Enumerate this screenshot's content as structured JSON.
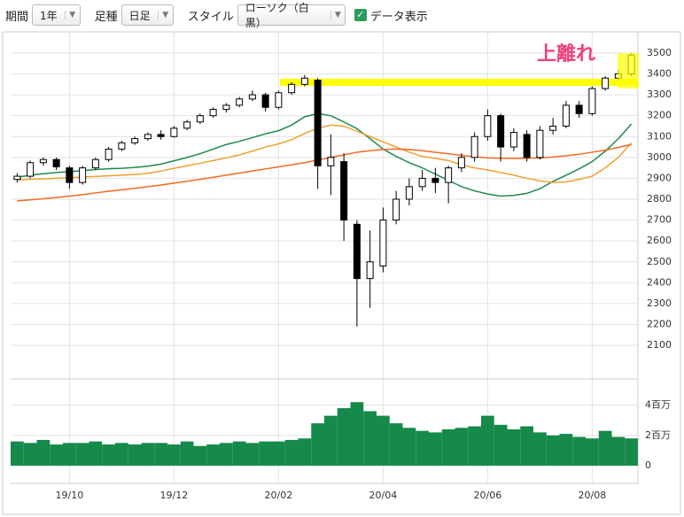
{
  "toolbar": {
    "period_label": "期間",
    "period_value": "1年",
    "bar_label": "足種",
    "bar_value": "日足",
    "style_label": "スタイル",
    "style_value": "ローソク（白黒）",
    "data_checkbox": "データ表示"
  },
  "chart_data": {
    "type": "candlestick",
    "categories": [
      null,
      null,
      null,
      null,
      "19/10",
      null,
      null,
      null,
      null,
      null,
      null,
      null,
      "19/12",
      null,
      null,
      null,
      null,
      null,
      null,
      null,
      "20/02",
      null,
      null,
      null,
      null,
      null,
      null,
      null,
      "20/04",
      null,
      null,
      null,
      null,
      null,
      null,
      null,
      "20/06",
      null,
      null,
      null,
      null,
      null,
      null,
      null,
      "20/08",
      null,
      null,
      null
    ],
    "open": [
      2895,
      2910,
      2975,
      2990,
      2950,
      2880,
      2950,
      2990,
      3040,
      3070,
      3090,
      3110,
      3100,
      3140,
      3170,
      3200,
      3230,
      3250,
      3280,
      3300,
      3240,
      3310,
      3350,
      3370,
      2960,
      2980,
      2680,
      2420,
      2480,
      2700,
      2800,
      2860,
      2900,
      2880,
      2950,
      3000,
      3100,
      3200,
      3050,
      3110,
      3000,
      3130,
      3150,
      3250,
      3210,
      3330,
      3380,
      3400
    ],
    "high": [
      2925,
      2985,
      3000,
      3000,
      2960,
      2960,
      3000,
      3050,
      3080,
      3100,
      3120,
      3130,
      3150,
      3180,
      3210,
      3240,
      3260,
      3290,
      3320,
      3310,
      3320,
      3360,
      3395,
      3380,
      3110,
      3020,
      2700,
      2650,
      2760,
      2840,
      2900,
      2940,
      2950,
      2960,
      3020,
      3120,
      3230,
      3210,
      3140,
      3130,
      3150,
      3190,
      3270,
      3270,
      3340,
      3390,
      3420,
      3500
    ],
    "low": [
      2880,
      2900,
      2960,
      2940,
      2850,
      2870,
      2940,
      2980,
      3030,
      3060,
      3080,
      3085,
      3095,
      3130,
      3160,
      3190,
      3215,
      3240,
      3270,
      3220,
      3230,
      3300,
      3340,
      2850,
      2820,
      2600,
      2190,
      2280,
      2450,
      2680,
      2770,
      2840,
      2830,
      2780,
      2930,
      2980,
      3080,
      2980,
      3030,
      2980,
      2990,
      3110,
      3140,
      3190,
      3200,
      3320,
      3370,
      3390
    ],
    "close": [
      2910,
      2975,
      2990,
      2955,
      2880,
      2950,
      2990,
      3040,
      3070,
      3090,
      3110,
      3100,
      3140,
      3170,
      3200,
      3230,
      3250,
      3280,
      3300,
      3240,
      3310,
      3350,
      3380,
      2960,
      3000,
      2700,
      2420,
      2500,
      2700,
      2800,
      2860,
      2900,
      2880,
      2950,
      3000,
      3100,
      3200,
      3050,
      3120,
      3000,
      3130,
      3150,
      3250,
      3210,
      3330,
      3380,
      3400,
      3490
    ],
    "moving_averages": [
      {
        "color": "#1e8a4c",
        "values": [
          2905,
          2915,
          2922,
          2928,
          2932,
          2937,
          2942,
          2946,
          2948,
          2952,
          2958,
          2968,
          2984,
          3000,
          3018,
          3040,
          3062,
          3077,
          3095,
          3113,
          3128,
          3155,
          3195,
          3210,
          3200,
          3170,
          3138,
          3090,
          3040,
          3005,
          2975,
          2950,
          2920,
          2890,
          2860,
          2840,
          2825,
          2815,
          2818,
          2828,
          2850,
          2885,
          2915,
          2945,
          2980,
          3030,
          3090,
          3160
        ]
      },
      {
        "color": "#f0a030",
        "values": [
          2892,
          2895,
          2897,
          2900,
          2903,
          2906,
          2909,
          2912,
          2915,
          2918,
          2924,
          2935,
          2948,
          2960,
          2972,
          2985,
          2998,
          3012,
          3030,
          3050,
          3065,
          3085,
          3115,
          3140,
          3155,
          3150,
          3125,
          3100,
          3075,
          3050,
          3025,
          3005,
          2995,
          2985,
          2965,
          2950,
          2940,
          2928,
          2915,
          2900,
          2888,
          2880,
          2882,
          2895,
          2910,
          2950,
          3000,
          3070
        ]
      },
      {
        "color": "#f06a20",
        "values": [
          2792,
          2797,
          2802,
          2808,
          2815,
          2822,
          2830,
          2838,
          2845,
          2852,
          2860,
          2868,
          2877,
          2886,
          2895,
          2905,
          2915,
          2925,
          2935,
          2945,
          2955,
          2965,
          2975,
          2988,
          3000,
          3012,
          3025,
          3032,
          3038,
          3040,
          3038,
          3032,
          3025,
          3018,
          3010,
          3003,
          2998,
          2996,
          2995,
          2996,
          2998,
          3002,
          3008,
          3015,
          3025,
          3035,
          3048,
          3062
        ]
      }
    ],
    "ylim": [
      1952,
      3576
    ],
    "yticks": [
      2100,
      2200,
      2300,
      2400,
      2500,
      2600,
      2700,
      2800,
      2900,
      3000,
      3100,
      3200,
      3300,
      3400,
      3500
    ],
    "grid": true,
    "annotation": {
      "text": "上離れ",
      "level": 3360,
      "color": "#ffff00"
    },
    "volume": {
      "color": "#158a4a",
      "values": [
        1600000,
        1500000,
        1700000,
        1400000,
        1500000,
        1500000,
        1600000,
        1400000,
        1500000,
        1400000,
        1500000,
        1500000,
        1400000,
        1600000,
        1300000,
        1400000,
        1500000,
        1600000,
        1500000,
        1600000,
        1600000,
        1700000,
        1800000,
        2800000,
        3300000,
        3800000,
        4200000,
        3600000,
        3300000,
        2800000,
        2500000,
        2300000,
        2200000,
        2400000,
        2500000,
        2600000,
        3300000,
        2700000,
        2400000,
        2600000,
        2200000,
        2000000,
        2100000,
        1900000,
        1800000,
        2300000,
        1900000,
        1800000
      ],
      "ylim": [
        0,
        5500000
      ],
      "yticks": [
        0,
        {
          "value": 2000000,
          "label": "2百万"
        },
        {
          "value": 4000000,
          "label": "4百万"
        }
      ]
    }
  }
}
